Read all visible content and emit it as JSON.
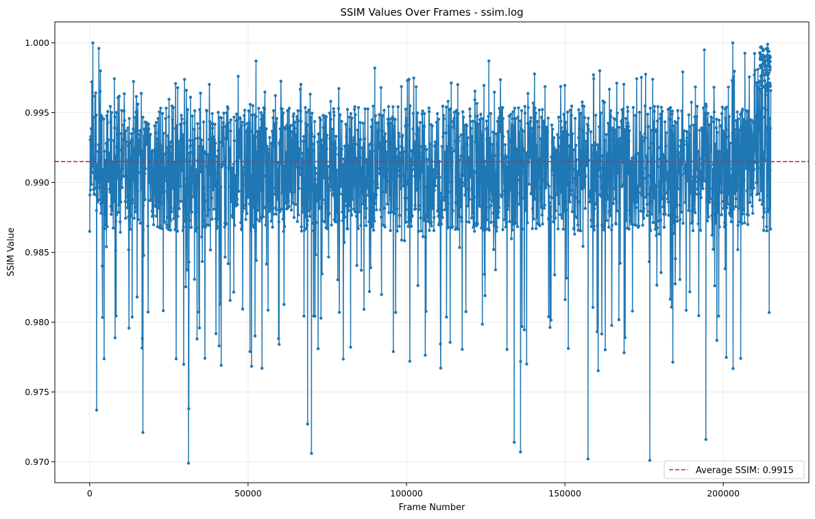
{
  "chart_data": {
    "type": "line",
    "title": "SSIM Values Over Frames - ssim.log",
    "xlabel": "Frame Number",
    "ylabel": "SSIM Value",
    "xlim": [
      -11000,
      227000
    ],
    "ylim": [
      0.9685,
      1.0015
    ],
    "xticks": [
      0,
      50000,
      100000,
      150000,
      200000
    ],
    "yticks": [
      0.97,
      0.975,
      0.98,
      0.985,
      0.99,
      0.995,
      1.0
    ],
    "ytick_labels": [
      "0.970",
      "0.975",
      "0.980",
      "0.985",
      "0.990",
      "0.995",
      "1.000"
    ],
    "grid": true,
    "legend_position": "bottom-right",
    "series": [
      {
        "color": "#1f77b4",
        "marker": "circle",
        "x_range": [
          0,
          215000
        ],
        "band_low": 0.9865,
        "band_high": 0.9955,
        "notable_points": [
          {
            "x": 1000,
            "y": 1.0
          },
          {
            "x": 2200,
            "y": 0.9737
          },
          {
            "x": 2900,
            "y": 0.9996
          },
          {
            "x": 16800,
            "y": 0.9721
          },
          {
            "x": 31200,
            "y": 0.9699
          },
          {
            "x": 31300,
            "y": 0.9738
          },
          {
            "x": 52500,
            "y": 0.9987
          },
          {
            "x": 68800,
            "y": 0.9727
          },
          {
            "x": 70000,
            "y": 0.9706
          },
          {
            "x": 90000,
            "y": 0.9982
          },
          {
            "x": 126000,
            "y": 0.9987
          },
          {
            "x": 134000,
            "y": 0.9714
          },
          {
            "x": 136000,
            "y": 0.9707
          },
          {
            "x": 157300,
            "y": 0.9702
          },
          {
            "x": 176800,
            "y": 0.9701
          },
          {
            "x": 194500,
            "y": 0.9716
          },
          {
            "x": 194000,
            "y": 0.9995
          },
          {
            "x": 203000,
            "y": 1.0
          },
          {
            "x": 205500,
            "y": 0.9774
          },
          {
            "x": 214000,
            "y": 0.9999
          }
        ]
      }
    ],
    "average_line": {
      "value": 0.9915,
      "color": "#d62728",
      "label": "Average SSIM: 0.9915"
    }
  }
}
